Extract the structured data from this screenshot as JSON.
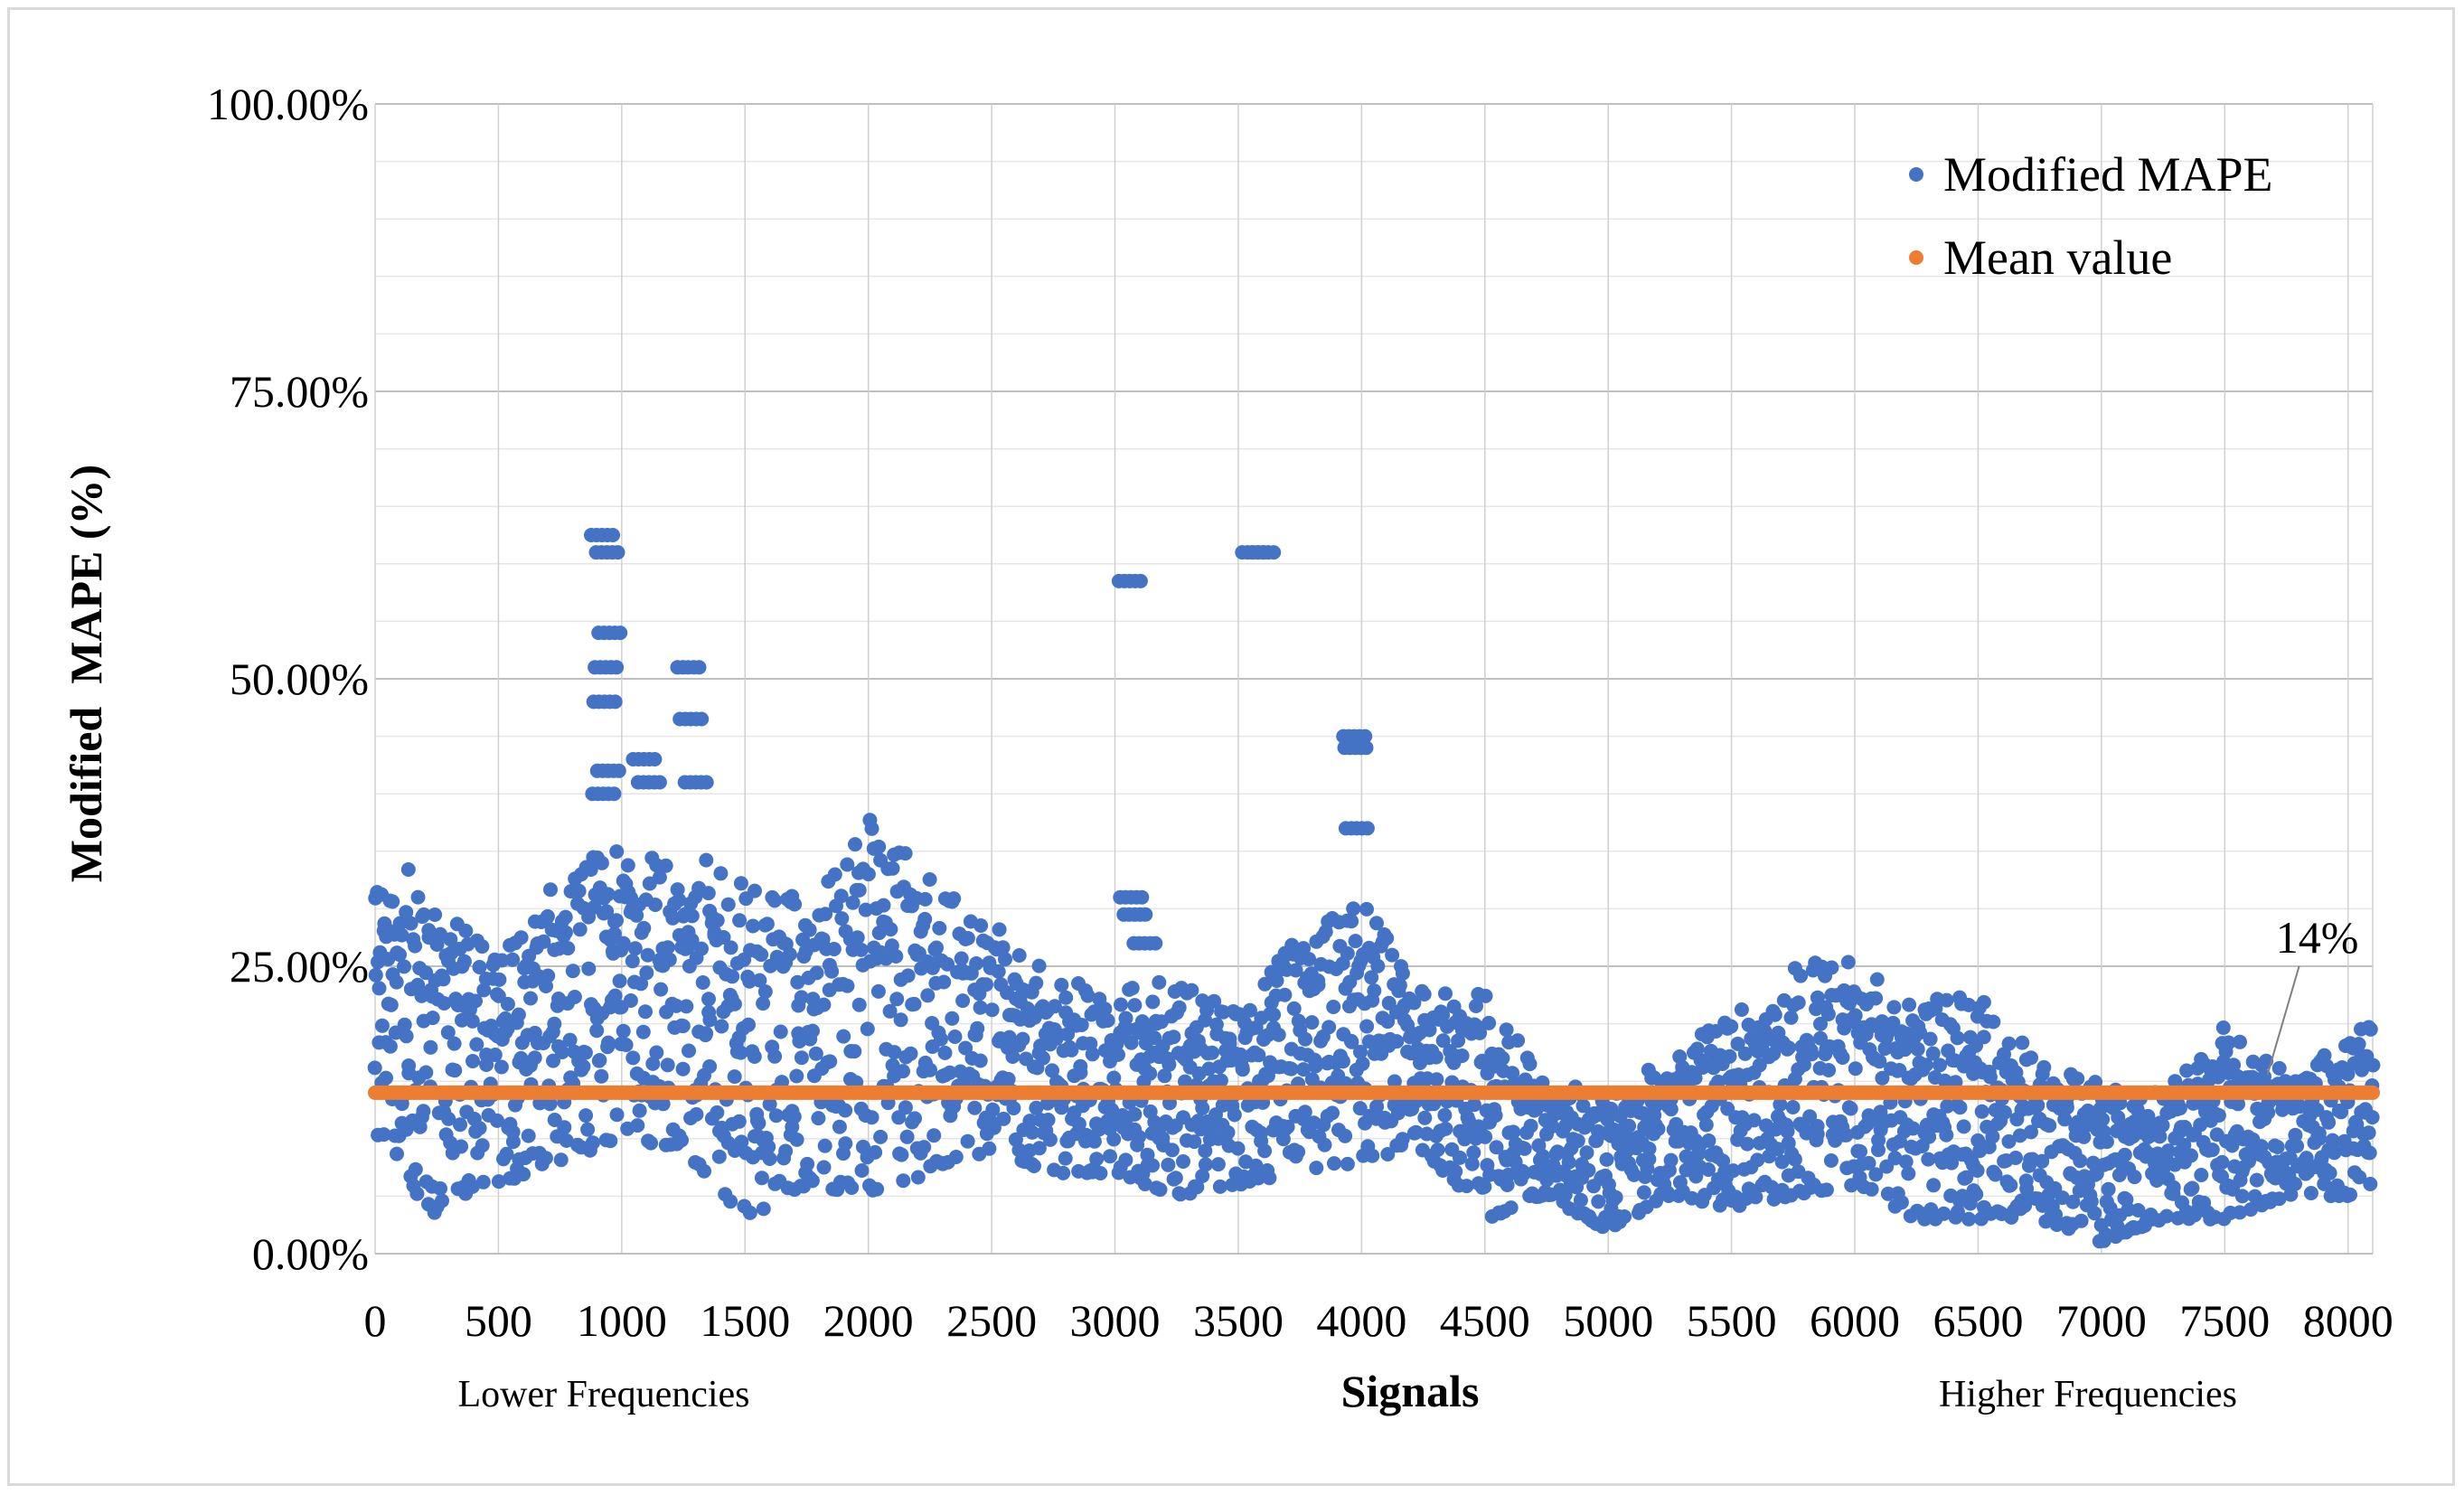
{
  "chart_data": {
    "type": "scatter",
    "title": "",
    "xlabel": "Signals",
    "ylabel": "Modified  MAPE (%)",
    "xlim": [
      0,
      8100
    ],
    "ylim": [
      0,
      100
    ],
    "x_ticks": [
      "0",
      "500",
      "1000",
      "1500",
      "2000",
      "2500",
      "3000",
      "3500",
      "4000",
      "4500",
      "5000",
      "5500",
      "6000",
      "6500",
      "7000",
      "7500",
      "8000"
    ],
    "y_ticks": [
      "0.00%",
      "25.00%",
      "50.00%",
      "75.00%",
      "100.00%"
    ],
    "grid": true,
    "legend_position": "top-right",
    "x_notes": {
      "left": "Lower Frequencies",
      "right": "Higher Frequencies"
    },
    "annotation": {
      "text": "14%",
      "x": 7600,
      "y": 14
    },
    "series": [
      {
        "name": "Modified MAPE",
        "color": "#4472c4",
        "envelope": {
          "x": [
            0,
            250,
            500,
            750,
            1000,
            1250,
            1500,
            1750,
            2000,
            2250,
            2500,
            2750,
            3000,
            3250,
            3500,
            3750,
            4000,
            4250,
            4500,
            4750,
            5000,
            5250,
            5500,
            5750,
            6000,
            6250,
            6500,
            6750,
            7000,
            7250,
            7500,
            7750,
            8000,
            8100
          ],
          "low": [
            10,
            3,
            6,
            8,
            10,
            9,
            3,
            6,
            5,
            7,
            9,
            7,
            7,
            5,
            6,
            7,
            8,
            9,
            3,
            5,
            2,
            5,
            4,
            5,
            6,
            3,
            3,
            3,
            1,
            3,
            3,
            5,
            5,
            6
          ],
          "high": [
            34,
            33,
            27,
            33,
            36,
            35,
            33,
            31,
            38,
            33,
            29,
            24,
            23,
            24,
            21,
            28,
            31,
            23,
            23,
            15,
            14,
            17,
            21,
            25,
            26,
            22,
            23,
            17,
            15,
            14,
            20,
            16,
            19,
            20
          ]
        },
        "outliers": [
          {
            "x": 920,
            "y": 62.5
          },
          {
            "x": 940,
            "y": 61
          },
          {
            "x": 950,
            "y": 54
          },
          {
            "x": 935,
            "y": 51
          },
          {
            "x": 930,
            "y": 48
          },
          {
            "x": 945,
            "y": 42
          },
          {
            "x": 925,
            "y": 40
          },
          {
            "x": 1270,
            "y": 51
          },
          {
            "x": 1280,
            "y": 46.5
          },
          {
            "x": 1300,
            "y": 41
          },
          {
            "x": 1090,
            "y": 43
          },
          {
            "x": 1110,
            "y": 41
          },
          {
            "x": 3060,
            "y": 58.5
          },
          {
            "x": 3560,
            "y": 61
          },
          {
            "x": 3600,
            "y": 61
          },
          {
            "x": 3970,
            "y": 45
          },
          {
            "x": 3975,
            "y": 44
          },
          {
            "x": 3980,
            "y": 37
          },
          {
            "x": 3065,
            "y": 31
          },
          {
            "x": 3080,
            "y": 29.5
          },
          {
            "x": 3120,
            "y": 27
          }
        ]
      },
      {
        "name": "Mean value",
        "color": "#ed7d31",
        "x": [
          0,
          8100
        ],
        "y": [
          14,
          14
        ]
      }
    ]
  }
}
